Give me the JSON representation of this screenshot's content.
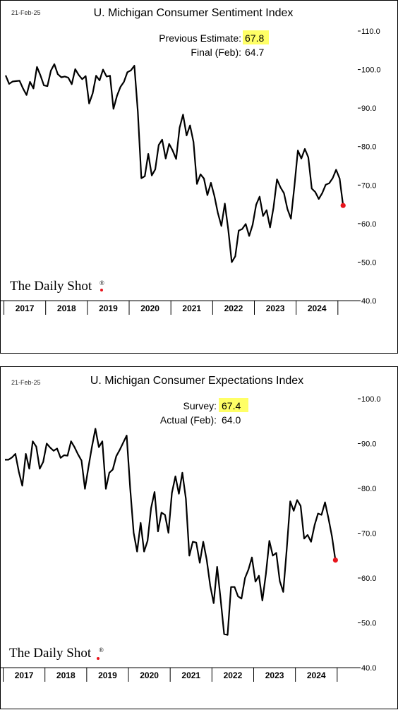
{
  "brand": "The Daily Shot",
  "brand_mark": "®",
  "chart_data": [
    {
      "type": "line",
      "date_label": "21-Feb-25",
      "title": "U. Michigan Consumer Sentiment Index",
      "annotation": {
        "line1_label": "Previous Estimate:",
        "line1_value": "67.8",
        "line2_label": "Final (Feb):",
        "line2_value": "64.7"
      },
      "ylim": [
        40,
        110
      ],
      "yticks": [
        40,
        50,
        60,
        70,
        80,
        90,
        100,
        110
      ],
      "ytick_labels": [
        "40.0",
        "50.0",
        "60.0",
        "70.0",
        "80.0",
        "90.0",
        "100.0",
        "110.0"
      ],
      "x_tick_labels": [
        "2017",
        "2018",
        "2019",
        "2020",
        "2021",
        "2022",
        "2023",
        "2024"
      ],
      "x_start": "2017-01",
      "frequency": "monthly",
      "highlight_color": "#ffff66",
      "last_point_color": "#e8141c",
      "values": [
        98.5,
        96.3,
        96.9,
        97.0,
        97.1,
        95.1,
        93.4,
        96.8,
        95.1,
        100.7,
        98.5,
        95.9,
        95.7,
        99.7,
        101.4,
        98.8,
        98.0,
        98.2,
        97.9,
        96.2,
        100.1,
        98.6,
        97.5,
        98.3,
        91.2,
        93.8,
        98.4,
        97.2,
        100.0,
        98.2,
        98.4,
        89.8,
        93.2,
        95.5,
        96.8,
        99.3,
        99.8,
        101.0,
        89.1,
        71.8,
        72.3,
        78.1,
        72.5,
        74.1,
        80.4,
        81.8,
        76.9,
        80.7,
        79.0,
        76.8,
        84.9,
        88.3,
        82.9,
        85.5,
        81.2,
        70.3,
        72.8,
        71.7,
        67.4,
        70.6,
        67.2,
        62.8,
        59.4,
        65.2,
        58.4,
        50.0,
        51.5,
        58.2,
        58.6,
        59.9,
        56.8,
        59.7,
        64.9,
        67.0,
        62.0,
        63.5,
        59.0,
        64.2,
        71.5,
        69.4,
        67.9,
        63.8,
        61.3,
        69.7,
        79.0,
        76.9,
        79.4,
        77.2,
        69.1,
        68.2,
        66.4,
        67.9,
        70.1,
        70.5,
        71.8,
        74.0,
        71.7,
        64.7
      ]
    },
    {
      "type": "line",
      "date_label": "21-Feb-25",
      "title": "U. Michigan Consumer Expectations Index",
      "annotation": {
        "line1_label": "Survey:",
        "line1_value": "67.4",
        "line2_label": "Actual (Feb):",
        "line2_value": "64.0"
      },
      "ylim": [
        40,
        100
      ],
      "yticks": [
        40,
        50,
        60,
        70,
        80,
        90,
        100
      ],
      "ytick_labels": [
        "40.0",
        "50.0",
        "60.0",
        "70.0",
        "80.0",
        "90.0",
        "100.0"
      ],
      "x_tick_labels": [
        "2017",
        "2018",
        "2019",
        "2020",
        "2021",
        "2022",
        "2023",
        "2024"
      ],
      "x_start": "2017-01",
      "frequency": "monthly",
      "highlight_color": "#ffff66",
      "last_point_color": "#e8141c",
      "values": [
        86.4,
        86.4,
        86.9,
        87.7,
        83.7,
        80.6,
        87.7,
        84.4,
        90.5,
        89.3,
        84.4,
        85.9,
        90.0,
        89.1,
        88.4,
        88.9,
        86.8,
        87.4,
        87.3,
        90.5,
        89.2,
        87.6,
        86.2,
        79.9,
        84.7,
        89.3,
        93.3,
        89.2,
        90.5,
        79.9,
        83.5,
        84.2,
        87.2,
        88.6,
        90.2,
        91.8,
        80.0,
        70.1,
        65.9,
        72.3,
        65.9,
        68.3,
        75.6,
        79.2,
        70.4,
        74.6,
        74.1,
        70.1,
        79.0,
        82.7,
        78.8,
        83.5,
        77.7,
        65.0,
        68.1,
        67.9,
        63.4,
        68.1,
        64.1,
        58.3,
        54.4,
        62.5,
        55.2,
        47.5,
        47.3,
        58.0,
        58.0,
        55.9,
        55.4,
        60.0,
        61.9,
        64.6,
        59.2,
        60.5,
        55.0,
        60.9,
        68.3,
        65.0,
        65.6,
        59.3,
        56.9,
        66.4,
        77.1,
        75.0,
        77.4,
        76.1,
        68.8,
        69.6,
        68.1,
        71.8,
        74.4,
        74.1,
        76.9,
        73.3,
        69.3,
        64.0
      ]
    }
  ]
}
